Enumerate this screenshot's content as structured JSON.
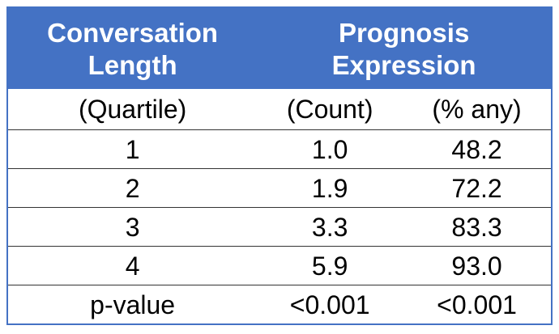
{
  "table": {
    "header": [
      "Conversation Length",
      "Prognosis Expression"
    ],
    "subheader": [
      "(Quartile)",
      "(Count)",
      "(% any)"
    ],
    "rows": [
      [
        "1",
        "1.0",
        "48.2"
      ],
      [
        "2",
        "1.9",
        "72.2"
      ],
      [
        "3",
        "3.3",
        "83.3"
      ],
      [
        "4",
        "5.9",
        "93.0"
      ],
      [
        "p-value",
        "<0.001",
        "<0.001"
      ]
    ]
  }
}
